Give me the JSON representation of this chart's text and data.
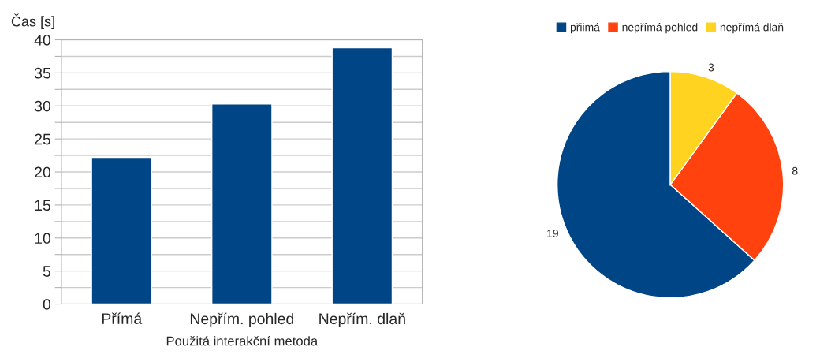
{
  "chart_data": [
    {
      "type": "bar",
      "ylabel": "Čas [s]",
      "xlabel": "Použitá interakční metoda",
      "categories": [
        "Přímá",
        "Nepřím. pohled",
        "Nepřím. dlaň"
      ],
      "series": [
        {
          "color": "#004586",
          "values": [
            22.2,
            30.3,
            38.8
          ]
        }
      ],
      "ylim": [
        0,
        40
      ],
      "yticks": [
        0,
        {
          "value": 2.5,
          "label": null
        },
        5,
        {
          "value": 7.5,
          "label": null
        },
        10,
        {
          "value": 12.5,
          "label": null
        },
        15,
        {
          "value": 17.5,
          "label": null
        },
        20,
        {
          "value": 22.5,
          "label": null
        },
        25,
        {
          "value": 27.5,
          "label": null
        },
        30,
        {
          "value": 32.5,
          "label": null
        },
        35,
        {
          "value": 37.5,
          "label": null
        },
        40
      ],
      "grid": "y",
      "legend": false
    },
    {
      "type": "pie",
      "categories": [
        "přiimá",
        "nepřímá pohled",
        "nepřímá dlaň"
      ],
      "values": [
        19,
        8,
        3
      ],
      "colors": [
        "#004586",
        "#ff420e",
        "#ffd320"
      ],
      "data_labels": true,
      "legend": "top"
    }
  ]
}
